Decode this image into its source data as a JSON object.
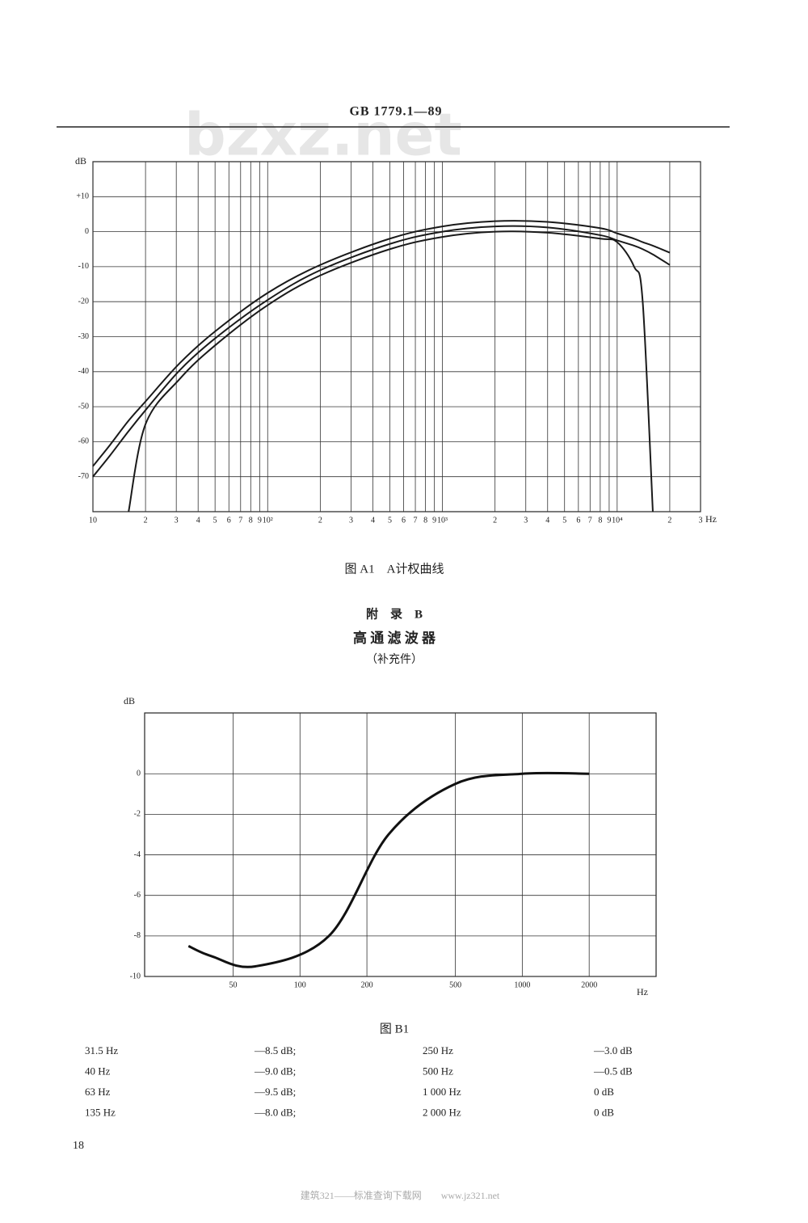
{
  "header": {
    "title": "GB 1779.1—89",
    "watermark": "bzxz.net"
  },
  "chart_data": [
    {
      "type": "line",
      "title": "图 A1　A计权曲线",
      "ylabel": "dB",
      "xlabel": "Hz",
      "xscale": "log",
      "grid": true,
      "color": "#1a1a1a",
      "xlim": [
        10,
        30000
      ],
      "ylim": [
        -80,
        20
      ],
      "xticks": [
        10,
        {
          "value": 20,
          "label": "2"
        },
        {
          "value": 30,
          "label": "3"
        },
        {
          "value": 40,
          "label": "4"
        },
        {
          "value": 50,
          "label": "5"
        },
        {
          "value": 60,
          "label": "6"
        },
        {
          "value": 70,
          "label": "7"
        },
        {
          "value": 80,
          "label": "8"
        },
        {
          "value": 90,
          "label": "9"
        },
        {
          "value": 100,
          "label": "10²"
        },
        {
          "value": 200,
          "label": "2"
        },
        {
          "value": 300,
          "label": "3"
        },
        {
          "value": 400,
          "label": "4"
        },
        {
          "value": 500,
          "label": "5"
        },
        {
          "value": 600,
          "label": "6"
        },
        {
          "value": 700,
          "label": "7"
        },
        {
          "value": 800,
          "label": "8"
        },
        {
          "value": 900,
          "label": "9"
        },
        {
          "value": 1000,
          "label": "10³"
        },
        {
          "value": 2000,
          "label": "2"
        },
        {
          "value": 3000,
          "label": "3"
        },
        {
          "value": 4000,
          "label": "4"
        },
        {
          "value": 5000,
          "label": "5"
        },
        {
          "value": 6000,
          "label": "6"
        },
        {
          "value": 7000,
          "label": "7"
        },
        {
          "value": 8000,
          "label": "8"
        },
        {
          "value": 9000,
          "label": "9"
        },
        {
          "value": 10000,
          "label": "10⁴"
        },
        {
          "value": 20000,
          "label": "2"
        },
        {
          "value": 30000,
          "label": "3"
        }
      ],
      "yticks": [
        {
          "value": 10,
          "label": "+10"
        },
        0,
        -10,
        -20,
        -30,
        -40,
        -50,
        -60,
        -70
      ],
      "x": [
        10,
        12.5,
        16,
        20,
        31.5,
        50,
        100,
        200,
        500,
        1000,
        2000,
        4000,
        8000,
        10000,
        12500,
        14000,
        16000,
        20000
      ],
      "series": [
        {
          "values": [
            -67,
            -61,
            -54,
            -48.5,
            -37.5,
            -28.5,
            -17.5,
            -9.5,
            -2,
            1.5,
            3,
            2.8,
            1,
            -0.5,
            -2,
            -3,
            -4,
            -6
          ]
        },
        {
          "values": [
            -70,
            -64,
            -57,
            -51,
            -39.5,
            -30.5,
            -19.5,
            -11,
            -3.5,
            0,
            1.5,
            1.2,
            -1,
            -2.5,
            -4,
            -5,
            -6.5,
            -9.5
          ]
        },
        {
          "values": [
            null,
            null,
            -80,
            -55,
            -42,
            -32.5,
            -21,
            -12.5,
            -5,
            -1.5,
            0,
            -0.3,
            -2,
            -3,
            -10,
            -20,
            -80,
            null
          ]
        }
      ]
    },
    {
      "type": "line",
      "title": "图 B1",
      "ylabel": "dB",
      "xlabel": "Hz",
      "xscale": "log",
      "grid": true,
      "color": "#111111",
      "xlim": [
        20,
        4000
      ],
      "ylim": [
        -10,
        3
      ],
      "xticks": [
        50,
        100,
        200,
        500,
        1000,
        2000
      ],
      "yticks": [
        0,
        -2,
        -4,
        -6,
        -8,
        -10
      ],
      "x": [
        31.5,
        40,
        63,
        135,
        250,
        500,
        1000,
        2000
      ],
      "values": [
        -8.5,
        -9,
        -9.5,
        -8,
        -3,
        -0.5,
        0,
        0
      ]
    }
  ],
  "appendix": {
    "label": "附　录　B",
    "title": "高 通 滤 波 器",
    "note": "（补充件）"
  },
  "table": {
    "rows": [
      [
        "31.5 Hz",
        "—8.5 dB;",
        "250 Hz",
        "—3.0 dB"
      ],
      [
        "40 Hz",
        "—9.0 dB;",
        "500 Hz",
        "—0.5 dB"
      ],
      [
        "63 Hz",
        "—9.5 dB;",
        "1 000 Hz",
        "0 dB"
      ],
      [
        "135 Hz",
        "—8.0 dB;",
        "2 000 Hz",
        "0 dB"
      ]
    ]
  },
  "page_number": "18",
  "footer": "建筑321——标准查询下载网　　www.jz321.net"
}
